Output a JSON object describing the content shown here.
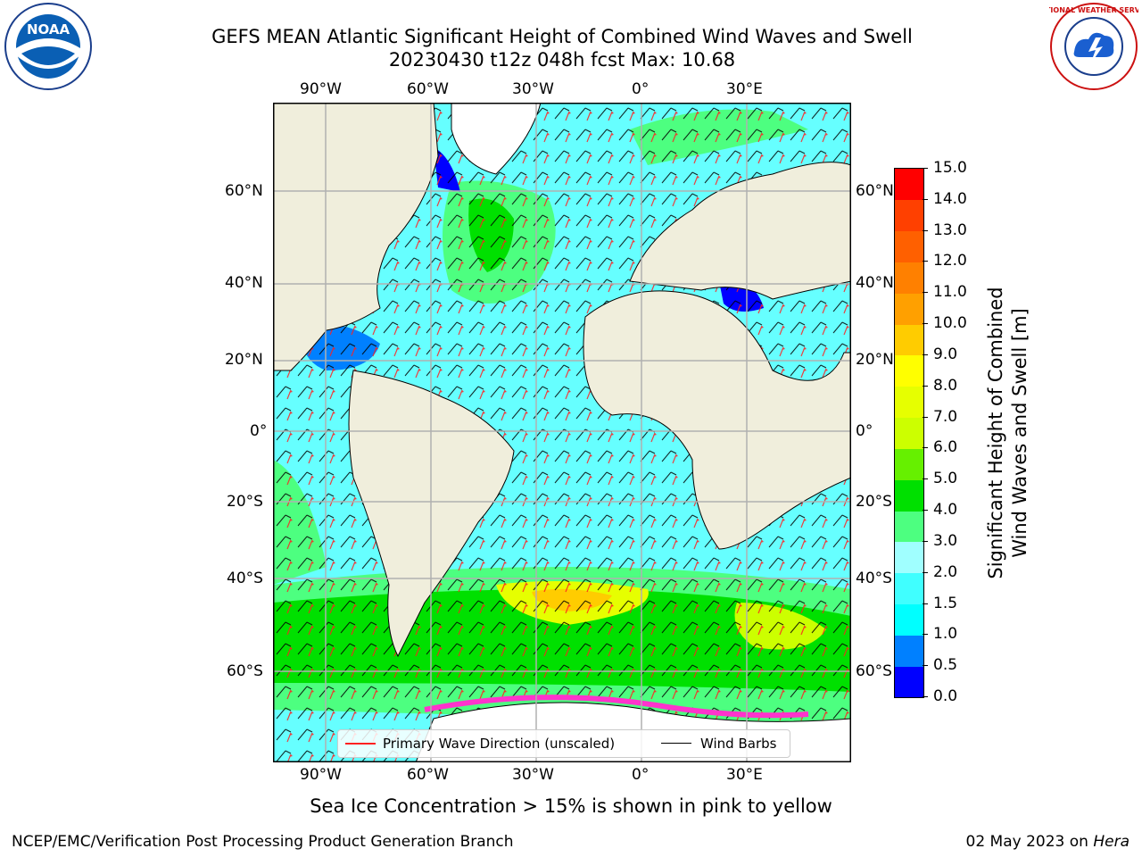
{
  "header": {
    "title_line1": "GEFS MEAN Atlantic Significant Height of Combined Wind Waves and Swell",
    "title_line2": "20230430 t12z 048h fcst   Max: 10.68"
  },
  "logos": {
    "left": {
      "name": "noaa-logo",
      "text": "NOAA"
    },
    "right": {
      "name": "nws-logo",
      "text": "NATIONAL WEATHER SERVICE"
    }
  },
  "map": {
    "lon_labels_top": [
      "90°W",
      "60°W",
      "30°W",
      "0°",
      "30°E"
    ],
    "lon_labels_bottom": [
      "90°W",
      "60°W",
      "30°W",
      "0°",
      "30°E"
    ],
    "lat_labels_left": [
      "60°N",
      "40°N",
      "20°N",
      "0°",
      "20°S",
      "40°S",
      "60°S"
    ],
    "lat_labels_right": [
      "60°N",
      "40°N",
      "20°N",
      "0°",
      "20°S",
      "40°S",
      "60°S"
    ],
    "colors": {
      "ocean_low": "#66ffff",
      "ocean_mid": "#4dff4d",
      "land": "#f0eedc",
      "ice": "#ff33cc"
    }
  },
  "legend": {
    "primary_wave": "Primary Wave Direction (unscaled)",
    "wind_barbs": "Wind Barbs"
  },
  "colorbar": {
    "label_line1": "Significant Height of Combined",
    "label_line2": "Wind Waves and Swell [m]",
    "ticks": [
      "0.0",
      "0.5",
      "1.0",
      "1.5",
      "2.0",
      "3.0",
      "4.0",
      "5.0",
      "6.0",
      "7.0",
      "8.0",
      "9.0",
      "10.0",
      "11.0",
      "12.0",
      "13.0",
      "14.0",
      "15.0"
    ],
    "colors": [
      "#0000ff",
      "#0080ff",
      "#00ffff",
      "#40ffff",
      "#a0ffff",
      "#4dff80",
      "#00e000",
      "#66f000",
      "#ccff00",
      "#e6ff00",
      "#ffff00",
      "#ffcc00",
      "#ffa000",
      "#ff8000",
      "#ff6000",
      "#ff4000",
      "#ff0000"
    ]
  },
  "notes": {
    "sea_ice": "Sea Ice Concentration > 15% is shown in pink to yellow"
  },
  "footer": {
    "left": "NCEP/EMC/Verification Post Processing Product Generation Branch",
    "date": "02 May 2023 on ",
    "machine": "Hera"
  }
}
